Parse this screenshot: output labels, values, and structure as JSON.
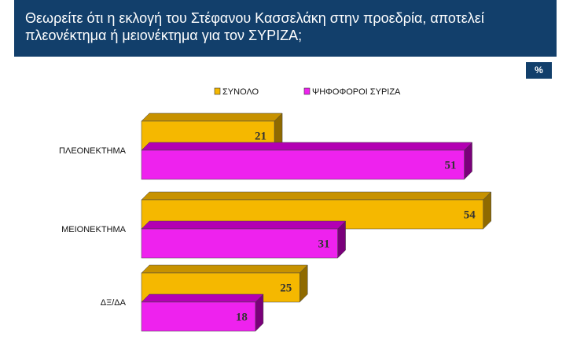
{
  "title_lines": [
    "Θεωρείτε ότι η εκλογή του Στέφανου Κασσελάκη στην προεδρία, αποτελεί",
    "πλεονέκτημα ή μειονέκτημα για τον ΣΥΡΙΖΑ;"
  ],
  "unit": "%",
  "colors": {
    "title_bg": "#123f6b",
    "series_total": "#f5b800",
    "series_total_top": "#c79200",
    "series_total_side": "#8f6a00",
    "series_syriza": "#ee22ee",
    "series_syriza_top": "#b300b3",
    "series_syriza_side": "#7a007a"
  },
  "chart_data": {
    "type": "bar",
    "orientation": "horizontal",
    "style": "3d",
    "categories": [
      "ΠΛΕΟΝΕΚΤΗΜΑ",
      "ΜΕΙΟΝΕΚΤΗΜΑ",
      "ΔΞ/ΔΑ"
    ],
    "series": [
      {
        "name": "ΣΥΝΟΛΟ",
        "values": [
          21,
          54,
          25
        ]
      },
      {
        "name": "ΨΗΦΟΦΟΡΟΙ ΣΥΡΙΖΑ",
        "values": [
          51,
          31,
          18
        ]
      }
    ],
    "xlim": [
      0,
      60
    ],
    "legend_position": "top",
    "grid": false,
    "data_labels": true
  }
}
